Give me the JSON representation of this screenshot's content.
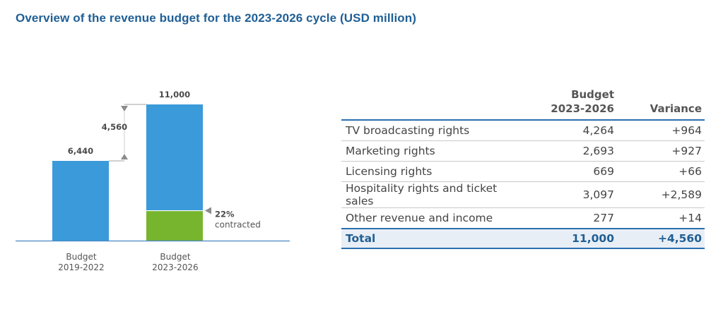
{
  "title": "Overview of the revenue budget for the 2023-2026 cycle (USD million)",
  "colors": {
    "bar": "#3b9ad9",
    "contracted": "#77b52f",
    "axis": "#4a88c4",
    "marker": "#8c8c8c",
    "title": "#1f5f95"
  },
  "chart_data": {
    "type": "bar",
    "categories": [
      "Budget\n2019-2022",
      "Budget\n2023-2026"
    ],
    "values": [
      6440,
      11000
    ],
    "value_labels": [
      "6,440",
      "11,000"
    ],
    "variance": {
      "value": 4560,
      "label": "4,560"
    },
    "contracted": {
      "share": 0.22,
      "label_line1": "22%",
      "label_line2": "contracted"
    },
    "ylim": [
      0,
      11000
    ]
  },
  "table": {
    "headers": {
      "label": "",
      "budget_line1": "Budget",
      "budget_line2": "2023-2026",
      "variance": "Variance"
    },
    "rows": [
      {
        "label": "TV broadcasting rights",
        "budget": "4,264",
        "variance": "+964"
      },
      {
        "label": "Marketing rights",
        "budget": "2,693",
        "variance": "+927"
      },
      {
        "label": "Licensing rights",
        "budget": "669",
        "variance": "+66"
      },
      {
        "label": "Hospitality rights and ticket sales",
        "budget": "3,097",
        "variance": "+2,589"
      },
      {
        "label": "Other revenue and income",
        "budget": "277",
        "variance": "+14"
      }
    ],
    "total": {
      "label": "Total",
      "budget": "11,000",
      "variance": "+4,560"
    }
  }
}
